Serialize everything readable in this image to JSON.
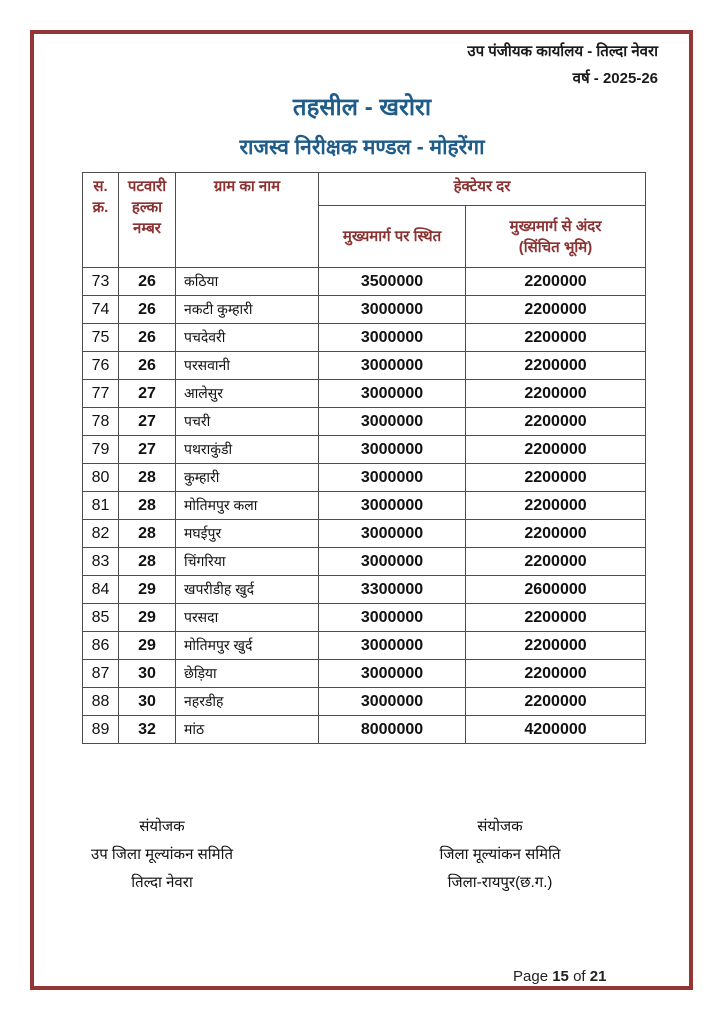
{
  "colors": {
    "page_border": "#943634",
    "title_blue": "#1F5C8A",
    "table_header_text": "#8B3333",
    "grid_line": "#4d4d4d"
  },
  "header": {
    "office_line": "उप पंजीयक कार्यालय - तिल्दा नेवरा",
    "year_line": "वर्ष - 2025-26"
  },
  "titles": {
    "tehsil": "तहसील - खरोरा",
    "mandal": "राजस्व निरीक्षक मण्डल - मोहरेंगा"
  },
  "table": {
    "headers": {
      "serial": "स.\nक्र.",
      "patwari": "पटवारी\nहल्का\nनम्बर",
      "village": "ग्राम का नाम",
      "rate_group": "हेक्टेयर दर",
      "rate_main_road": "मुख्यमार्ग पर स्थित",
      "rate_inner": "मुख्यमार्ग से अंदर\n(सिंचित भूमि)"
    },
    "rows": [
      [
        "73",
        "26",
        "कठिया",
        "3500000",
        "2200000"
      ],
      [
        "74",
        "26",
        "नकटी कुम्हारी",
        "3000000",
        "2200000"
      ],
      [
        "75",
        "26",
        "पचदेवरी",
        "3000000",
        "2200000"
      ],
      [
        "76",
        "26",
        "परसवानी",
        "3000000",
        "2200000"
      ],
      [
        "77",
        "27",
        "आलेसुर",
        "3000000",
        "2200000"
      ],
      [
        "78",
        "27",
        "पचरी",
        "3000000",
        "2200000"
      ],
      [
        "79",
        "27",
        "पथराकुंडी",
        "3000000",
        "2200000"
      ],
      [
        "80",
        "28",
        "कुम्हारी",
        "3000000",
        "2200000"
      ],
      [
        "81",
        "28",
        "मोतिमपुर कला",
        "3000000",
        "2200000"
      ],
      [
        "82",
        "28",
        "मघईपुर",
        "3000000",
        "2200000"
      ],
      [
        "83",
        "28",
        "चिंगरिया",
        "3000000",
        "2200000"
      ],
      [
        "84",
        "29",
        "खपरीडीह खुर्द",
        "3300000",
        "2600000"
      ],
      [
        "85",
        "29",
        "परसदा",
        "3000000",
        "2200000"
      ],
      [
        "86",
        "29",
        "मोतिमपुर खुर्द",
        "3000000",
        "2200000"
      ],
      [
        "87",
        "30",
        "छेड़िया",
        "3000000",
        "2200000"
      ],
      [
        "88",
        "30",
        "नहरडीह",
        "3000000",
        "2200000"
      ],
      [
        "89",
        "32",
        "मांठ",
        "8000000",
        "4200000"
      ]
    ]
  },
  "signatures": {
    "left": {
      "line1": "संयोजक",
      "line2": "उप जिला मूल्यांकन समिति",
      "line3": "तिल्दा नेवरा"
    },
    "right": {
      "line1": "संयोजक",
      "line2": "जिला मूल्यांकन समिति",
      "line3": "जिला-रायपुर(छ.ग.)"
    }
  },
  "footer": {
    "page_word": "Page",
    "page_number": "15",
    "of_word": "of",
    "page_total": "21"
  }
}
